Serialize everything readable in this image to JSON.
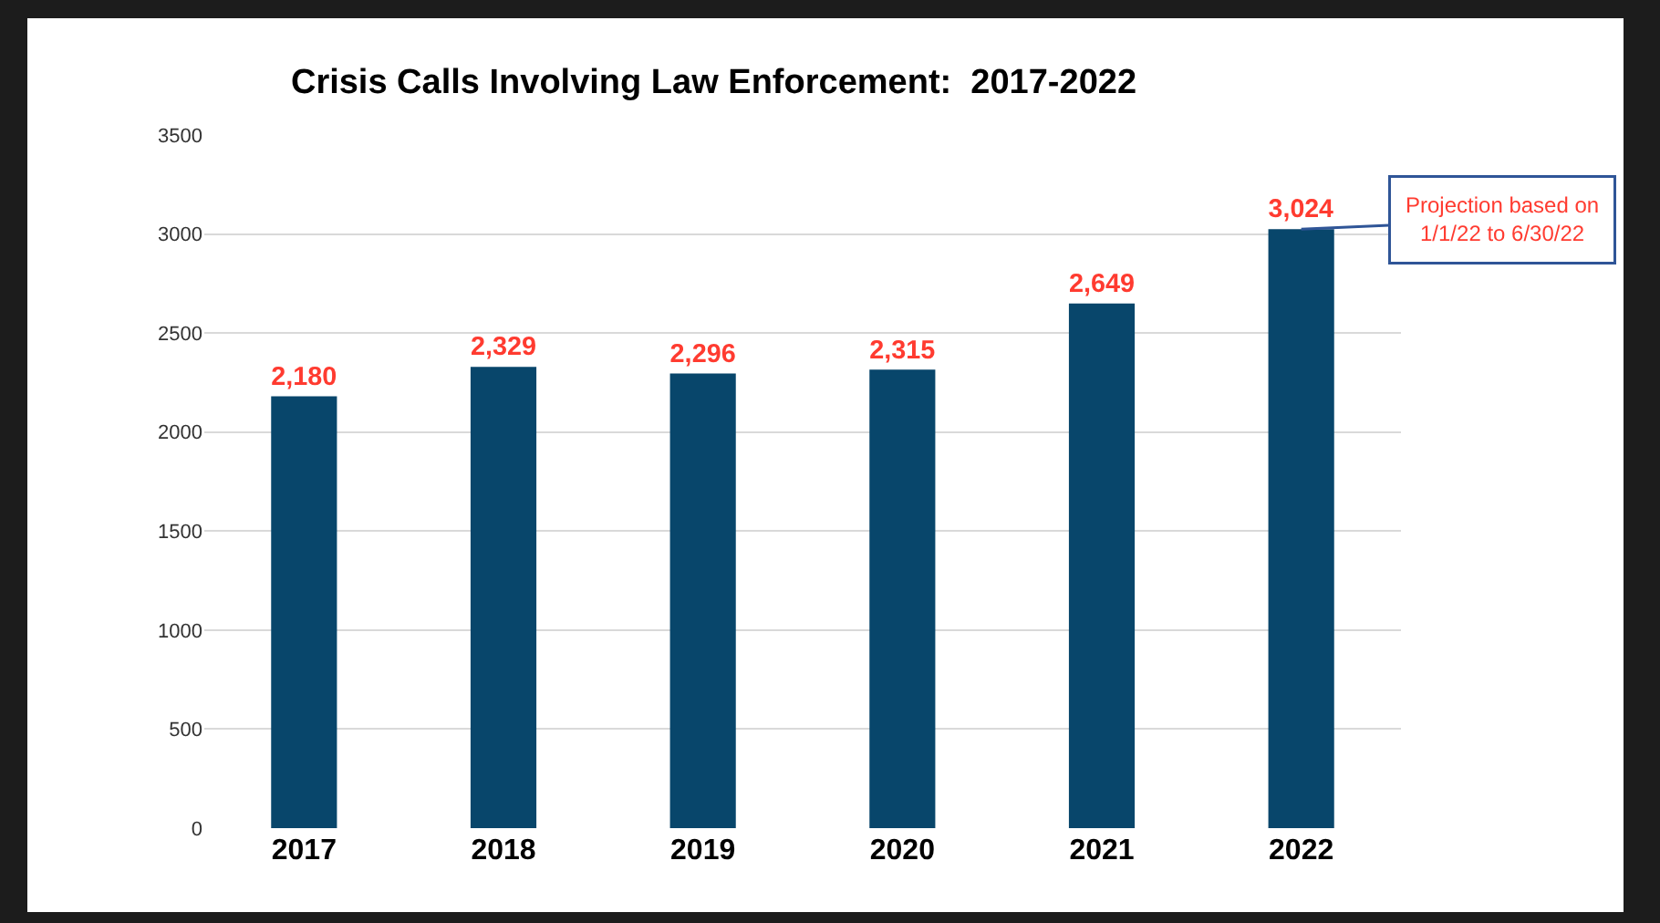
{
  "chart_data": {
    "type": "bar",
    "title": "Crisis Calls Involving Law Enforcement:  2017-2022",
    "categories": [
      "2017",
      "2018",
      "2019",
      "2020",
      "2021",
      "2022"
    ],
    "values": [
      2180,
      2329,
      2296,
      2315,
      2649,
      3024
    ],
    "color": "#08466b",
    "value_labels": [
      "2,180",
      "2,329",
      "2,296",
      "2,315",
      "2,649",
      "3,024"
    ],
    "ylim": [
      0,
      3500
    ],
    "yticks": [
      0,
      500,
      1000,
      1500,
      2000,
      2500,
      3000,
      3500
    ],
    "grid": "y",
    "legend": false,
    "annotations": [
      {
        "text": "Projection based on\n1/1/22 to 6/30/22",
        "x": "2022",
        "y": 3024
      }
    ]
  }
}
